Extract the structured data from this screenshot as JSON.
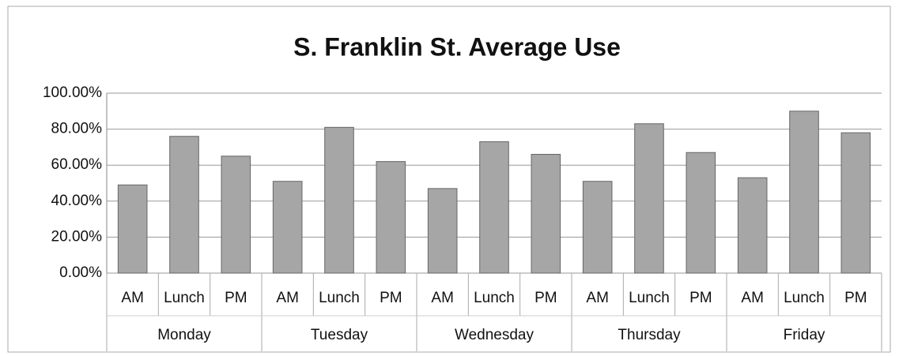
{
  "chart_data": {
    "type": "bar",
    "title": "S. Franklin St. Average Use",
    "categories": [
      "AM",
      "Lunch",
      "PM",
      "AM",
      "Lunch",
      "PM",
      "AM",
      "Lunch",
      "PM",
      "AM",
      "Lunch",
      "PM",
      "AM",
      "Lunch",
      "PM"
    ],
    "groups": [
      "Monday",
      "Tuesday",
      "Wednesday",
      "Thursday",
      "Friday"
    ],
    "values": [
      49,
      76,
      65,
      51,
      81,
      62,
      47,
      73,
      66,
      51,
      83,
      67,
      53,
      90,
      78
    ],
    "color": "#a6a6a6",
    "ylim": [
      0,
      100
    ],
    "yticks": [
      {
        "value": 0,
        "label": "0.00%"
      },
      {
        "value": 20,
        "label": "20.00%"
      },
      {
        "value": 40,
        "label": "40.00%"
      },
      {
        "value": 60,
        "label": "60.00%"
      },
      {
        "value": 80,
        "label": "80.00%"
      },
      {
        "value": 100,
        "label": "100.00%"
      }
    ],
    "grid": true
  }
}
